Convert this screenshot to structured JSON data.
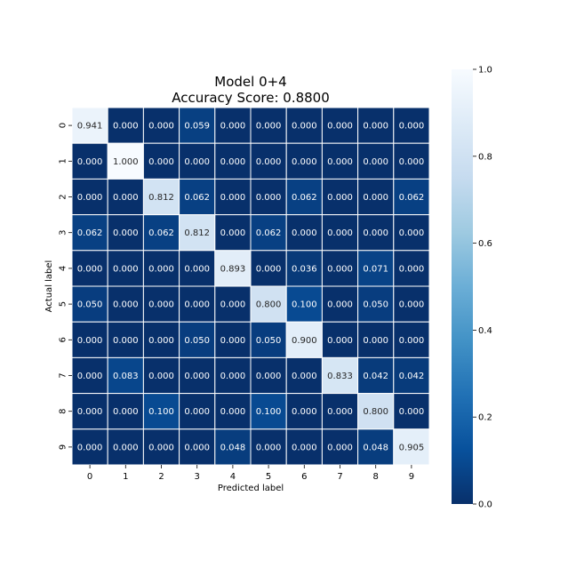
{
  "chart_data": {
    "type": "heatmap",
    "title_lines": [
      "Model 0+4",
      "Accuracy Score: 0.8800"
    ],
    "xlabel": "Predicted label",
    "ylabel": "Actual label",
    "x_tick_labels": [
      "0",
      "1",
      "2",
      "3",
      "4",
      "5",
      "6",
      "7",
      "8",
      "9"
    ],
    "y_tick_labels": [
      "0",
      "1",
      "2",
      "3",
      "4",
      "5",
      "6",
      "7",
      "8",
      "9"
    ],
    "value_range": [
      0.0,
      1.0
    ],
    "colormap": "Blues_r",
    "colormap_stops": [
      "#08306b",
      "#08519c",
      "#2171b5",
      "#4292c6",
      "#6baed6",
      "#9ecae1",
      "#c6dbef",
      "#deebf7",
      "#f7fbff"
    ],
    "cell_gridlines": true,
    "gridline_color": "#ffffff",
    "colorbar_ticks": [
      "0.0",
      "0.2",
      "0.4",
      "0.6",
      "0.8",
      "1.0"
    ],
    "colorbar_tick_values": [
      0.0,
      0.2,
      0.4,
      0.6,
      0.8,
      1.0
    ],
    "values": [
      [
        0.941,
        0.0,
        0.0,
        0.059,
        0.0,
        0.0,
        0.0,
        0.0,
        0.0,
        0.0
      ],
      [
        0.0,
        1.0,
        0.0,
        0.0,
        0.0,
        0.0,
        0.0,
        0.0,
        0.0,
        0.0
      ],
      [
        0.0,
        0.0,
        0.812,
        0.062,
        0.0,
        0.0,
        0.062,
        0.0,
        0.0,
        0.062
      ],
      [
        0.062,
        0.0,
        0.062,
        0.812,
        0.0,
        0.062,
        0.0,
        0.0,
        0.0,
        0.0
      ],
      [
        0.0,
        0.0,
        0.0,
        0.0,
        0.893,
        0.0,
        0.036,
        0.0,
        0.071,
        0.0
      ],
      [
        0.05,
        0.0,
        0.0,
        0.0,
        0.0,
        0.8,
        0.1,
        0.0,
        0.05,
        0.0
      ],
      [
        0.0,
        0.0,
        0.0,
        0.05,
        0.0,
        0.05,
        0.9,
        0.0,
        0.0,
        0.0
      ],
      [
        0.0,
        0.083,
        0.0,
        0.0,
        0.0,
        0.0,
        0.0,
        0.833,
        0.042,
        0.042
      ],
      [
        0.0,
        0.0,
        0.1,
        0.0,
        0.0,
        0.1,
        0.0,
        0.0,
        0.8,
        0.0
      ],
      [
        0.0,
        0.0,
        0.0,
        0.0,
        0.048,
        0.0,
        0.0,
        0.0,
        0.048,
        0.905
      ]
    ]
  }
}
